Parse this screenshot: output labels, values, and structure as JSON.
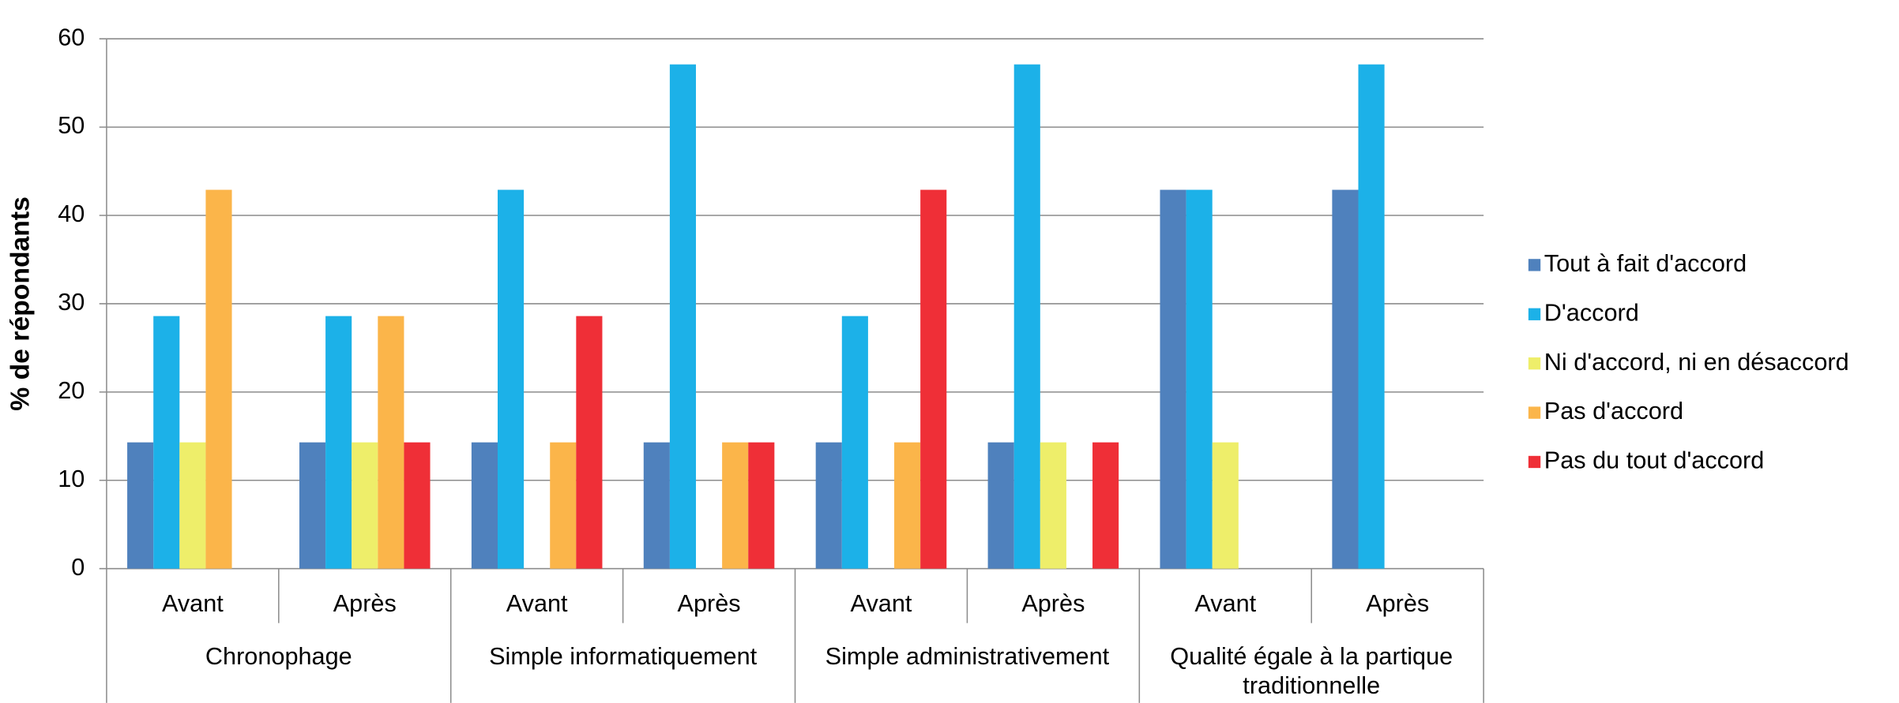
{
  "chart_data": {
    "type": "bar",
    "ylabel": "% de répondants",
    "categories": [
      "Avant",
      "Après",
      "Avant",
      "Après",
      "Avant",
      "Après",
      "Avant",
      "Après"
    ],
    "groups": [
      [
        "Chronophage"
      ],
      [
        "Simple informatiquement"
      ],
      [
        "Simple administrativement"
      ],
      [
        "Qualité égale à la partique",
        "traditionnelle"
      ]
    ],
    "series": [
      {
        "name": "Tout à fait d'accord",
        "color": "#4f81bd",
        "values": [
          14.3,
          14.3,
          14.3,
          14.3,
          14.3,
          14.3,
          42.9,
          42.9
        ]
      },
      {
        "name": "D'accord",
        "color": "#1cb1e8",
        "values": [
          28.6,
          28.6,
          42.9,
          57.1,
          28.6,
          57.1,
          42.9,
          57.1
        ]
      },
      {
        "name": "Ni d'accord, ni en désaccord",
        "color": "#eeee6a",
        "values": [
          14.3,
          14.3,
          0,
          0,
          0,
          14.3,
          14.3,
          0
        ]
      },
      {
        "name": "Pas d'accord",
        "color": "#fbb54a",
        "values": [
          42.9,
          28.6,
          14.3,
          14.3,
          14.3,
          0,
          0,
          0
        ]
      },
      {
        "name": "Pas du tout d'accord",
        "color": "#ef2f37",
        "values": [
          0,
          14.3,
          28.6,
          14.3,
          42.9,
          14.3,
          0,
          0
        ]
      }
    ],
    "ylim": [
      0,
      60
    ],
    "yticks": [
      0,
      10,
      20,
      30,
      40,
      50,
      60
    ],
    "grid": true,
    "legend": "right"
  }
}
